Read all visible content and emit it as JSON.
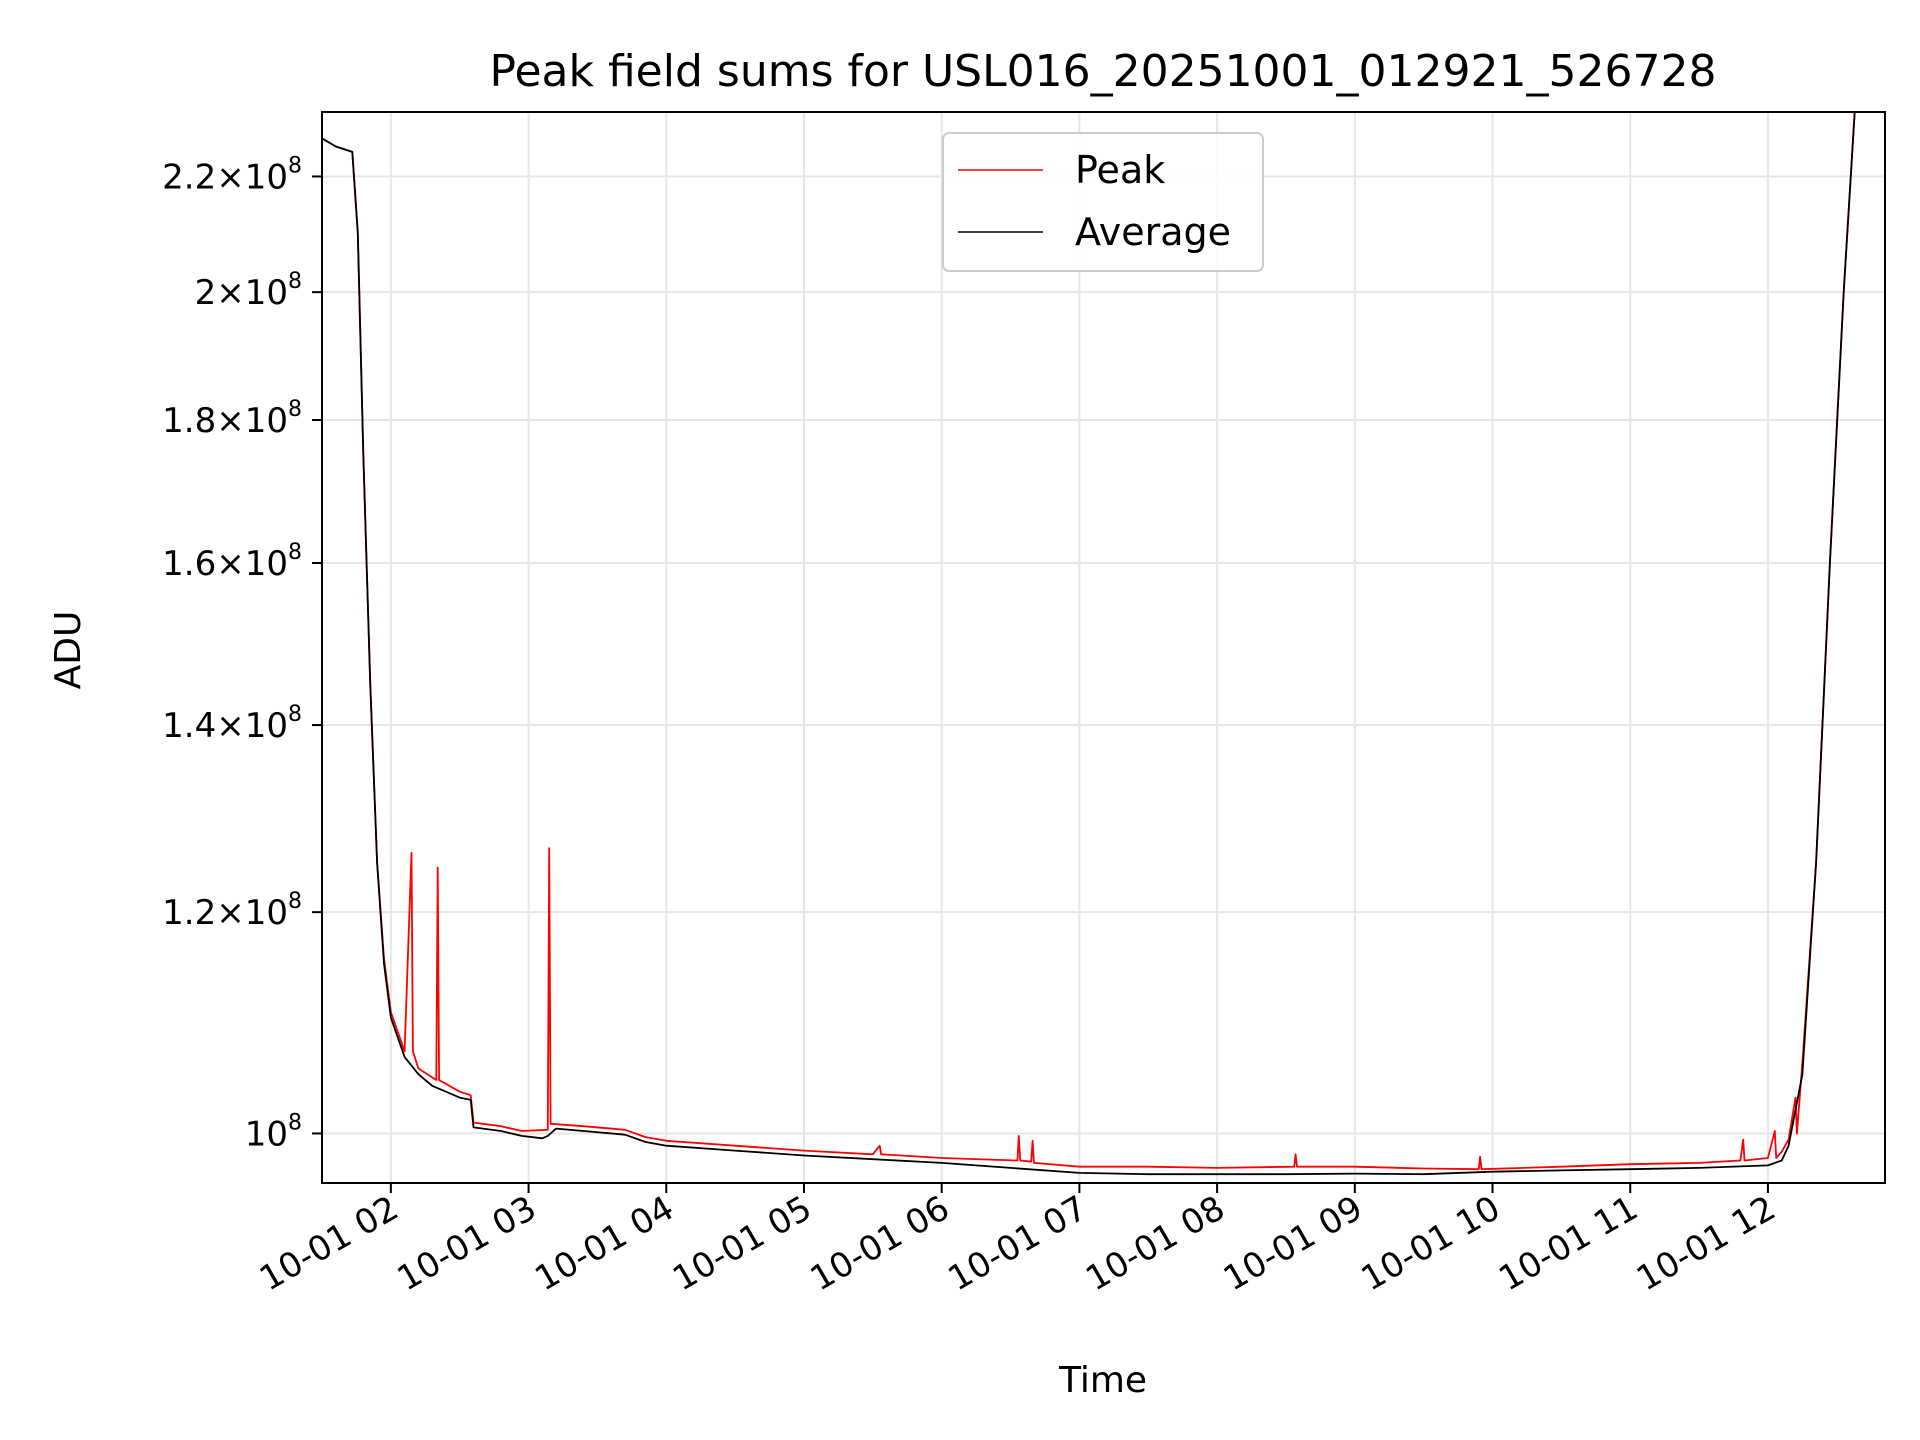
{
  "chart_data": {
    "type": "line",
    "title": "Peak field sums for USL016_20251001_012921_526728",
    "xlabel": "Time",
    "ylabel": "ADU",
    "yscale": "log",
    "grid": true,
    "legend_position": "upper-center",
    "x_range_hours": [
      1.5,
      12.85
    ],
    "ylim": [
      96000000,
      232000000
    ],
    "x_ticks": [
      {
        "hour": 2,
        "label": "10-01 02"
      },
      {
        "hour": 3,
        "label": "10-01 03"
      },
      {
        "hour": 4,
        "label": "10-01 04"
      },
      {
        "hour": 5,
        "label": "10-01 05"
      },
      {
        "hour": 6,
        "label": "10-01 06"
      },
      {
        "hour": 7,
        "label": "10-01 07"
      },
      {
        "hour": 8,
        "label": "10-01 08"
      },
      {
        "hour": 9,
        "label": "10-01 09"
      },
      {
        "hour": 10,
        "label": "10-01 10"
      },
      {
        "hour": 11,
        "label": "10-01 11"
      },
      {
        "hour": 12,
        "label": "10-01 12"
      }
    ],
    "y_ticks": [
      {
        "value": 100000000,
        "mantissa": "",
        "exp": "8"
      },
      {
        "value": 120000000,
        "mantissa": "1.2",
        "exp": "8"
      },
      {
        "value": 140000000,
        "mantissa": "1.4",
        "exp": "8"
      },
      {
        "value": 160000000,
        "mantissa": "1.6",
        "exp": "8"
      },
      {
        "value": 180000000,
        "mantissa": "1.8",
        "exp": "8"
      },
      {
        "value": 200000000,
        "mantissa": "2",
        "exp": "8"
      },
      {
        "value": 220000000,
        "mantissa": "2.2",
        "exp": "8"
      }
    ],
    "series": [
      {
        "name": "Average",
        "color": "#000000",
        "points": [
          [
            1.5,
            227000000
          ],
          [
            1.6,
            225500000
          ],
          [
            1.72,
            224500000
          ],
          [
            1.76,
            210000000
          ],
          [
            1.8,
            175000000
          ],
          [
            1.85,
            145000000
          ],
          [
            1.9,
            125000000
          ],
          [
            1.95,
            115000000
          ],
          [
            2.0,
            110000000
          ],
          [
            2.1,
            106500000
          ],
          [
            2.2,
            105000000
          ],
          [
            2.3,
            104000000
          ],
          [
            2.4,
            103500000
          ],
          [
            2.5,
            103000000
          ],
          [
            2.58,
            102800000
          ],
          [
            2.6,
            100500000
          ],
          [
            2.8,
            100200000
          ],
          [
            2.95,
            99800000
          ],
          [
            3.1,
            99600000
          ],
          [
            3.14,
            99800000
          ],
          [
            3.2,
            100400000
          ],
          [
            3.4,
            100200000
          ],
          [
            3.7,
            99900000
          ],
          [
            3.85,
            99300000
          ],
          [
            4.0,
            99000000
          ],
          [
            4.5,
            98600000
          ],
          [
            5.0,
            98200000
          ],
          [
            5.5,
            97900000
          ],
          [
            6.0,
            97600000
          ],
          [
            6.5,
            97200000
          ],
          [
            7.0,
            96800000
          ],
          [
            7.5,
            96700000
          ],
          [
            8.0,
            96700000
          ],
          [
            8.5,
            96700000
          ],
          [
            9.0,
            96750000
          ],
          [
            9.5,
            96700000
          ],
          [
            10.0,
            96900000
          ],
          [
            10.5,
            97000000
          ],
          [
            11.0,
            97100000
          ],
          [
            11.5,
            97200000
          ],
          [
            12.0,
            97400000
          ],
          [
            12.1,
            97800000
          ],
          [
            12.15,
            99000000
          ],
          [
            12.25,
            105000000
          ],
          [
            12.35,
            125000000
          ],
          [
            12.45,
            160000000
          ],
          [
            12.55,
            200000000
          ],
          [
            12.63,
            232000000
          ]
        ]
      },
      {
        "name": "Peak",
        "color": "#ff0000",
        "points": [
          [
            1.5,
            227000000
          ],
          [
            1.6,
            225500000
          ],
          [
            1.72,
            224500000
          ],
          [
            1.76,
            210000000
          ],
          [
            1.8,
            175000000
          ],
          [
            1.85,
            145000000
          ],
          [
            1.9,
            125000000
          ],
          [
            1.95,
            115500000
          ],
          [
            2.0,
            110500000
          ],
          [
            2.1,
            107000000
          ],
          [
            2.15,
            126000000
          ],
          [
            2.16,
            107000000
          ],
          [
            2.2,
            105500000
          ],
          [
            2.33,
            104500000
          ],
          [
            2.34,
            124500000
          ],
          [
            2.35,
            104500000
          ],
          [
            2.5,
            103500000
          ],
          [
            2.58,
            103200000
          ],
          [
            2.6,
            100900000
          ],
          [
            2.8,
            100600000
          ],
          [
            2.95,
            100200000
          ],
          [
            3.14,
            100300000
          ],
          [
            3.15,
            126500000
          ],
          [
            3.16,
            100800000
          ],
          [
            3.4,
            100600000
          ],
          [
            3.7,
            100300000
          ],
          [
            3.85,
            99700000
          ],
          [
            4.0,
            99400000
          ],
          [
            4.5,
            99000000
          ],
          [
            5.0,
            98600000
          ],
          [
            5.5,
            98300000
          ],
          [
            5.55,
            99000000
          ],
          [
            5.56,
            98300000
          ],
          [
            6.0,
            98000000
          ],
          [
            6.55,
            97800000
          ],
          [
            6.56,
            99800000
          ],
          [
            6.57,
            97800000
          ],
          [
            6.65,
            97700000
          ],
          [
            6.66,
            99400000
          ],
          [
            6.67,
            97600000
          ],
          [
            7.0,
            97300000
          ],
          [
            7.5,
            97300000
          ],
          [
            8.0,
            97200000
          ],
          [
            8.56,
            97300000
          ],
          [
            8.57,
            98300000
          ],
          [
            8.58,
            97300000
          ],
          [
            9.0,
            97300000
          ],
          [
            9.5,
            97150000
          ],
          [
            9.9,
            97100000
          ],
          [
            9.91,
            98100000
          ],
          [
            9.92,
            97100000
          ],
          [
            10.5,
            97300000
          ],
          [
            11.0,
            97500000
          ],
          [
            11.5,
            97600000
          ],
          [
            11.8,
            97800000
          ],
          [
            11.82,
            99500000
          ],
          [
            11.83,
            97800000
          ],
          [
            12.0,
            98000000
          ],
          [
            12.05,
            100200000
          ],
          [
            12.06,
            98000000
          ],
          [
            12.1,
            98500000
          ],
          [
            12.15,
            99500000
          ],
          [
            12.2,
            103000000
          ],
          [
            12.21,
            100000000
          ],
          [
            12.25,
            106000000
          ],
          [
            12.35,
            125000000
          ],
          [
            12.45,
            160000000
          ],
          [
            12.55,
            200000000
          ],
          [
            12.63,
            232000000
          ]
        ]
      }
    ],
    "legend": [
      {
        "label": "Peak",
        "color": "#ff0000"
      },
      {
        "label": "Average",
        "color": "#000000"
      }
    ]
  }
}
